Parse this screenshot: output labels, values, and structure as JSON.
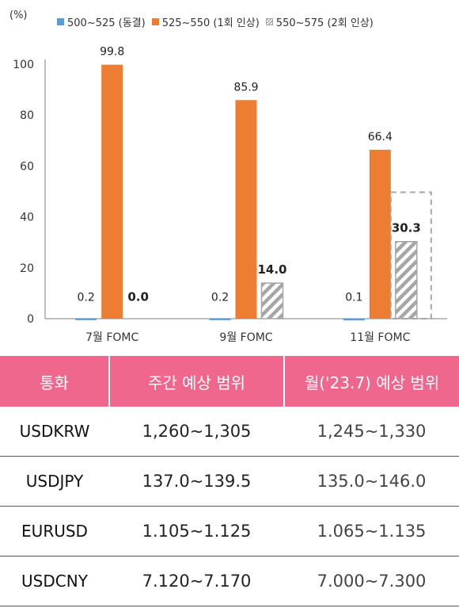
{
  "chart_data": {
    "type": "bar",
    "unit_label": "(%)",
    "categories": [
      "7월 FOMC",
      "9월 FOMC",
      "11월 FOMC"
    ],
    "series": [
      {
        "name": "500~525 (동결)",
        "color": "#5b9bd5",
        "style": "solid",
        "values": [
          0.2,
          0.2,
          0.1
        ]
      },
      {
        "name": "525~550 (1회 인상)",
        "color": "#ed7d31",
        "style": "solid",
        "values": [
          99.8,
          85.9,
          66.4
        ]
      },
      {
        "name": "550~575 (2회 인상)",
        "color": "#a6a6a6",
        "style": "hatched",
        "values": [
          0.0,
          14.0,
          30.3
        ]
      }
    ],
    "data_labels": [
      [
        "0.2",
        "99.8",
        "0.0"
      ],
      [
        "0.2",
        "85.9",
        "14.0"
      ],
      [
        "0.1",
        "66.4",
        "30.3"
      ]
    ],
    "y_ticks": [
      "0",
      "20",
      "40",
      "60",
      "80",
      "100"
    ],
    "ylim": [
      0,
      100
    ],
    "grid": false,
    "legend_position": "top",
    "highlight": "dashed box around 11월 FOMC 550~575 bar"
  },
  "table": {
    "headers": [
      "통화",
      "주간 예상 범위",
      "월('23.7) 예상 범위"
    ],
    "rows": [
      {
        "pair": "USDKRW",
        "weekly": "1,260~1,305",
        "monthly": "1,245~1,330"
      },
      {
        "pair": "USDJPY",
        "weekly": "137.0~139.5",
        "monthly": "135.0~146.0"
      },
      {
        "pair": "EURUSD",
        "weekly": "1.105~1.125",
        "monthly": "1.065~1.135"
      },
      {
        "pair": "USDCNY",
        "weekly": "7.120~7.170",
        "monthly": "7.000~7.300"
      }
    ],
    "header_color": "#f0678d"
  }
}
